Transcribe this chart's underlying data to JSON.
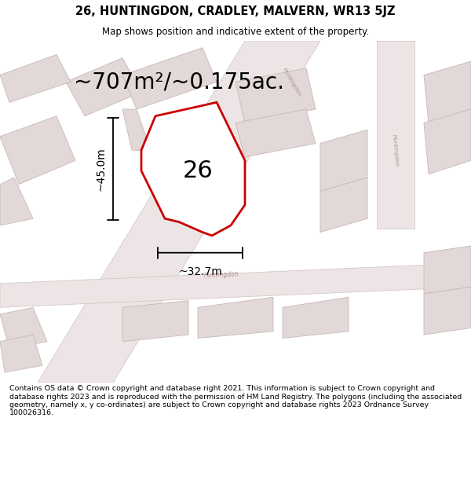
{
  "title": "26, HUNTINGDON, CRADLEY, MALVERN, WR13 5JZ",
  "subtitle": "Map shows position and indicative extent of the property.",
  "footer": "Contains OS data © Crown copyright and database right 2021. This information is subject to Crown copyright and database rights 2023 and is reproduced with the permission of HM Land Registry. The polygons (including the associated geometry, namely x, y co-ordinates) are subject to Crown copyright and database rights 2023 Ordnance Survey 100026316.",
  "area_label": "~707m²/~0.175ac.",
  "number_label": "26",
  "dim_width": "~32.7m",
  "dim_height": "~45.0m",
  "map_bg": "#f2eded",
  "plot_color": "#cc0000",
  "plot_fill": "#ffffff",
  "block_fill": "#e2d8d8",
  "block_edge": "#c8b8b8",
  "road_fill": "#ede5e5",
  "road_edge": "#d8c8c8",
  "street_color": "#b09090",
  "street_name": "Huntingdon",
  "fig_width": 6.0,
  "fig_height": 6.25,
  "title_fontsize": 10.5,
  "subtitle_fontsize": 8.5,
  "footer_fontsize": 6.8,
  "area_fontsize": 20,
  "number_fontsize": 22,
  "dim_fontsize": 10
}
